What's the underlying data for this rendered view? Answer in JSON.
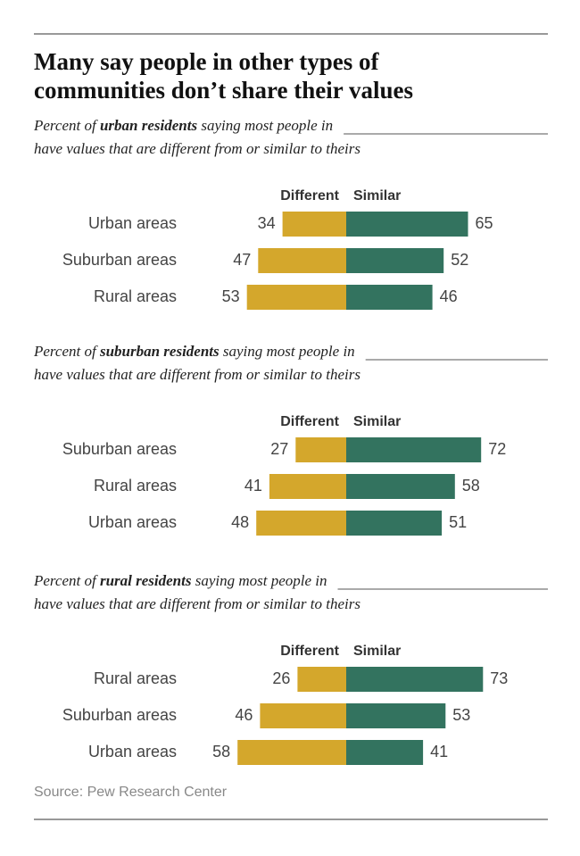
{
  "title": [
    "Many say people in other types of",
    "communities don’t share their values"
  ],
  "source": "Source: Pew Research Center",
  "chart_data": [
    {
      "type": "bar",
      "subtitle": {
        "prefix": "Percent of ",
        "group": "urban residents",
        "suffix": " saying most people in",
        "line2": "have values that are different from or similar to theirs"
      },
      "categories": [
        "Urban areas",
        "Suburban areas",
        "Rural areas"
      ],
      "series": [
        {
          "name": "Different",
          "color": "#d4a72c",
          "values": [
            34,
            47,
            53
          ]
        },
        {
          "name": "Similar",
          "color": "#33735f",
          "values": [
            65,
            52,
            46
          ]
        }
      ]
    },
    {
      "type": "bar",
      "subtitle": {
        "prefix": "Percent of ",
        "group": "suburban residents",
        "suffix": " saying most people in",
        "line2": "have values that are different from or similar to theirs"
      },
      "categories": [
        "Suburban areas",
        "Rural areas",
        "Urban areas"
      ],
      "series": [
        {
          "name": "Different",
          "color": "#d4a72c",
          "values": [
            27,
            41,
            48
          ]
        },
        {
          "name": "Similar",
          "color": "#33735f",
          "values": [
            72,
            58,
            51
          ]
        }
      ]
    },
    {
      "type": "bar",
      "subtitle": {
        "prefix": "Percent of ",
        "group": "rural residents",
        "suffix": " saying most people in",
        "line2": "have values that are different from or similar to theirs"
      },
      "categories": [
        "Rural areas",
        "Suburban areas",
        "Urban areas"
      ],
      "series": [
        {
          "name": "Different",
          "color": "#d4a72c",
          "values": [
            26,
            46,
            58
          ]
        },
        {
          "name": "Similar",
          "color": "#33735f",
          "values": [
            73,
            53,
            41
          ]
        }
      ]
    }
  ]
}
